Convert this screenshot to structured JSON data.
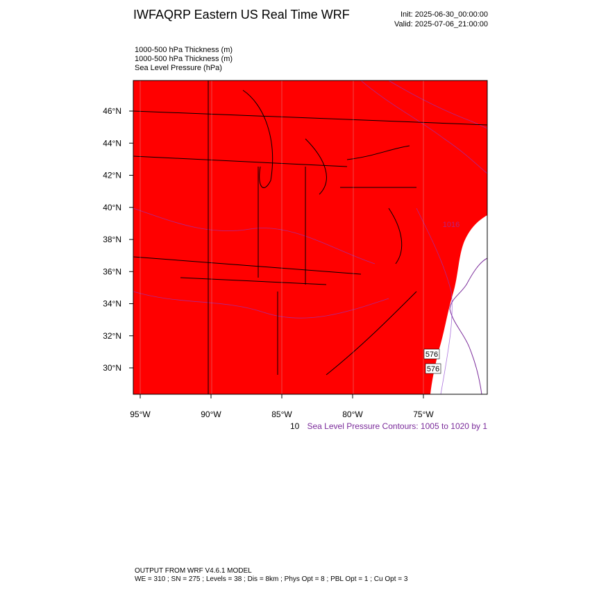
{
  "header": {
    "title": "IWFAQRP Eastern US Real Time WRF",
    "init": "Init: 2025-06-30_00:00:00",
    "valid": "Valid: 2025-07-06_21:00:00"
  },
  "fields": [
    "1000-500 hPa Thickness   (m)",
    "1000-500 hPa Thickness   (m)",
    "Sea Level Pressure   (hPa)"
  ],
  "map": {
    "lat_labels": [
      "46°N",
      "44°N",
      "42°N",
      "40°N",
      "38°N",
      "36°N",
      "34°N",
      "32°N",
      "30°N"
    ],
    "lon_labels": [
      "95°W",
      "90°W",
      "85°W",
      "80°W",
      "75°W"
    ],
    "contour_labels": [
      "576",
      "576",
      "1016"
    ]
  },
  "contour_note": {
    "prefix": "10",
    "text": "Sea Level Pressure Contours: 1005 to 1020 by 1"
  },
  "footer": {
    "model": "OUTPUT FROM WRF V4.6.1 MODEL",
    "settings": "WE = 310 ; SN = 275 ; Levels = 38 ; Dis = 8km ; Phys Opt = 8 ; PBL Opt = 1 ; Cu Opt = 3"
  }
}
